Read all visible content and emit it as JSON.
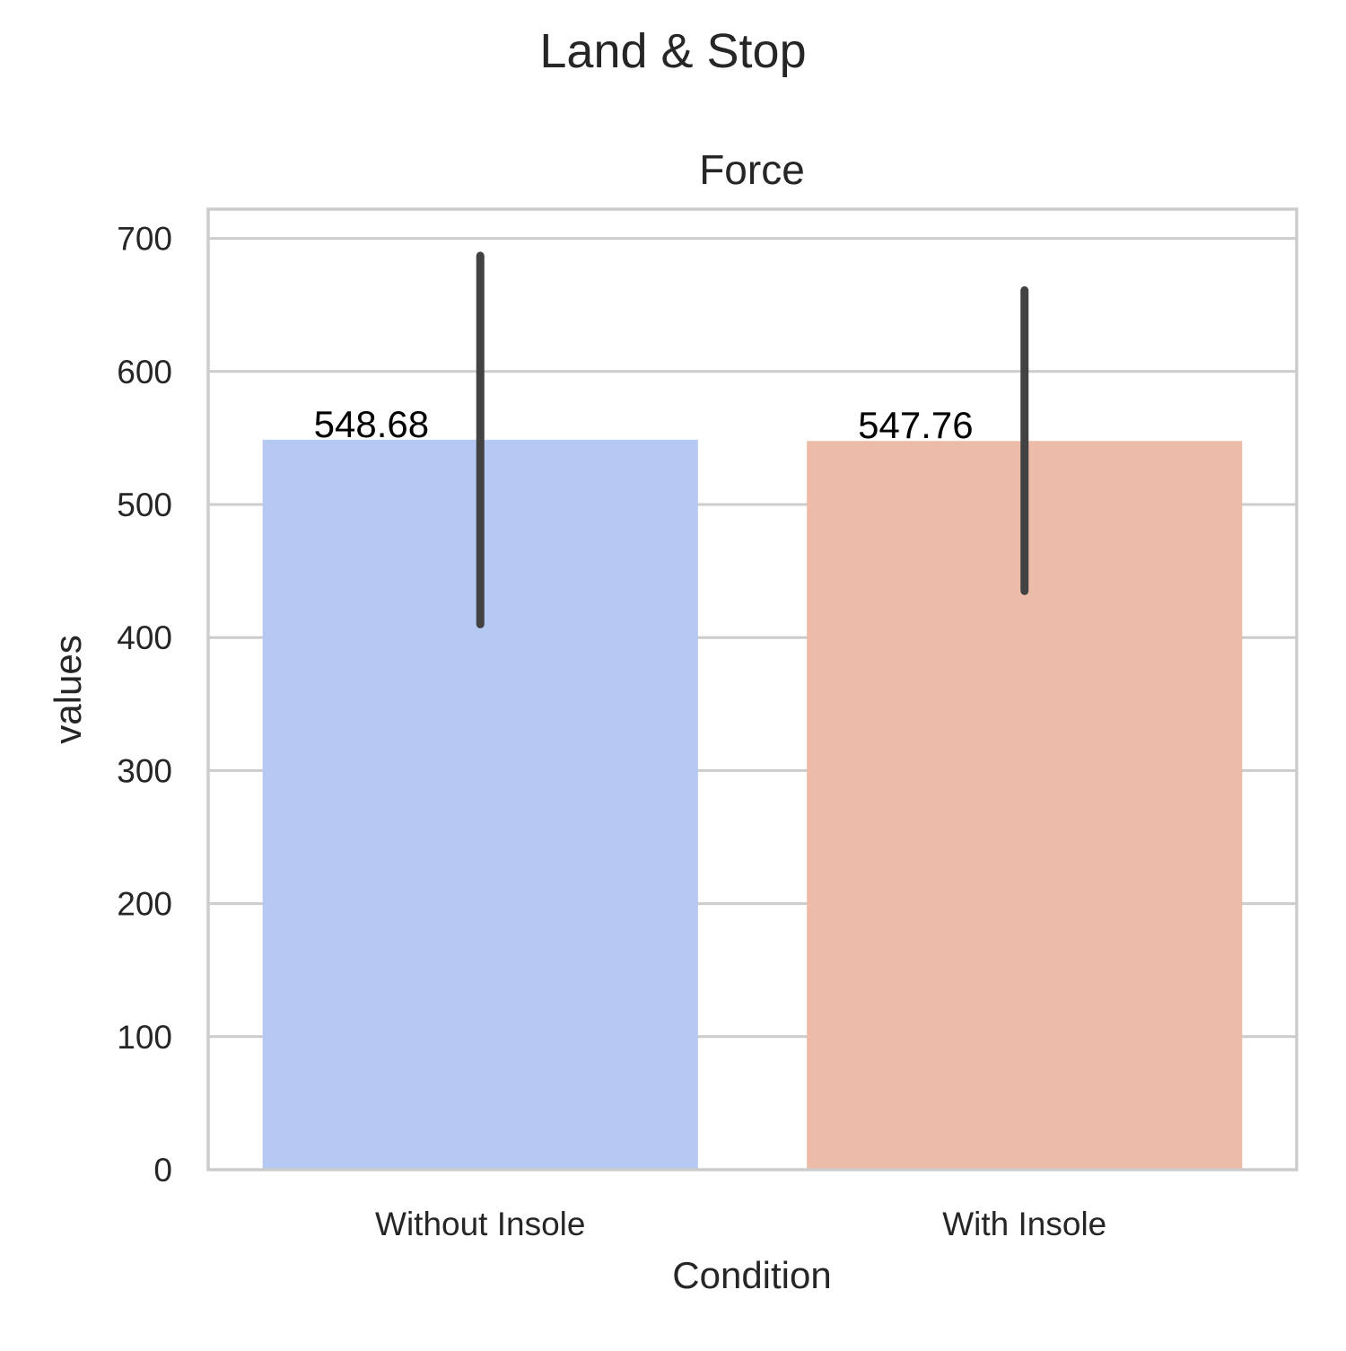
{
  "chart_data": {
    "type": "bar",
    "suptitle": "Land & Stop",
    "title": "Force",
    "xlabel": "Condition",
    "ylabel": "values",
    "categories": [
      "Without Insole",
      "With Insole"
    ],
    "values": [
      548.68,
      547.76
    ],
    "value_labels": [
      "548.68",
      "547.76"
    ],
    "error_bars": [
      {
        "low": 410,
        "high": 687
      },
      {
        "low": 435,
        "high": 661
      }
    ],
    "colors": [
      "#b5c9f2",
      "#ecbca8"
    ],
    "ylim": [
      0,
      722
    ],
    "yticks": [
      0,
      100,
      200,
      300,
      400,
      500,
      600,
      700
    ],
    "grid": true,
    "legend": "none"
  }
}
